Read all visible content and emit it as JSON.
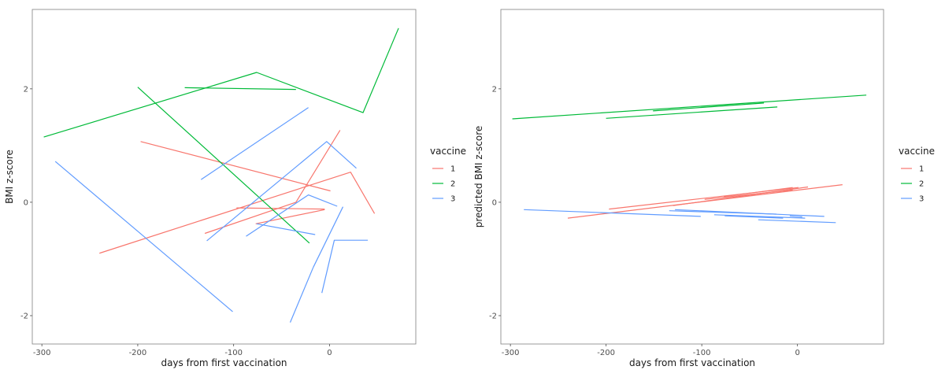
{
  "chart_data": [
    {
      "type": "line",
      "xlabel": "days from first vaccination",
      "ylabel": "BMI z-score",
      "xlim": [
        -310,
        90
      ],
      "ylim": [
        -2.5,
        3.4
      ],
      "x_ticks": [
        -300,
        -200,
        -100,
        0
      ],
      "x_tick_labels": [
        "-300",
        "-200",
        "-100",
        "0"
      ],
      "y_ticks": [
        -2,
        0,
        2
      ],
      "y_tick_labels": [
        "-2",
        "0",
        "2"
      ],
      "legend": {
        "title": "vaccine",
        "position": "right",
        "entries": [
          {
            "label": "1",
            "color": "#F8766D"
          },
          {
            "label": "2",
            "color": "#00BA38"
          },
          {
            "label": "3",
            "color": "#619CFF"
          }
        ]
      },
      "series": [
        {
          "vaccine": "1",
          "points": [
            [
              -240,
              -0.9
            ],
            [
              22,
              0.53
            ],
            [
              47,
              -0.2
            ]
          ]
        },
        {
          "vaccine": "1",
          "points": [
            [
              -197,
              1.07
            ],
            [
              1,
              0.2
            ]
          ]
        },
        {
          "vaccine": "1",
          "points": [
            [
              -130,
              -0.55
            ],
            [
              -35,
              0.0
            ],
            [
              11,
              1.27
            ]
          ]
        },
        {
          "vaccine": "1",
          "points": [
            [
              -97,
              -0.1
            ],
            [
              -5,
              -0.12
            ]
          ]
        },
        {
          "vaccine": "1",
          "points": [
            [
              -77,
              -0.38
            ],
            [
              -5,
              -0.13
            ]
          ]
        },
        {
          "vaccine": "2",
          "points": [
            [
              -298,
              1.15
            ],
            [
              -76,
              2.29
            ],
            [
              35,
              1.58
            ],
            [
              72,
              3.07
            ]
          ]
        },
        {
          "vaccine": "2",
          "points": [
            [
              -200,
              2.03
            ],
            [
              -21,
              -0.72
            ]
          ]
        },
        {
          "vaccine": "2",
          "points": [
            [
              -151,
              2.02
            ],
            [
              -35,
              1.99
            ]
          ]
        },
        {
          "vaccine": "3",
          "points": [
            [
              -286,
              0.72
            ],
            [
              -101,
              -1.93
            ]
          ]
        },
        {
          "vaccine": "3",
          "points": [
            [
              -134,
              0.4
            ],
            [
              -22,
              1.67
            ]
          ]
        },
        {
          "vaccine": "3",
          "points": [
            [
              -128,
              -0.68
            ],
            [
              -3,
              1.07
            ],
            [
              28,
              0.6
            ]
          ]
        },
        {
          "vaccine": "3",
          "points": [
            [
              -87,
              -0.6
            ],
            [
              -22,
              0.13
            ],
            [
              8,
              -0.07
            ]
          ]
        },
        {
          "vaccine": "3",
          "points": [
            [
              -76,
              -0.38
            ],
            [
              -15,
              -0.57
            ]
          ]
        },
        {
          "vaccine": "3",
          "points": [
            [
              -41,
              -2.12
            ],
            [
              -17,
              -1.15
            ]
          ]
        },
        {
          "vaccine": "3",
          "points": [
            [
              -8,
              -1.6
            ],
            [
              5,
              -0.67
            ],
            [
              40,
              -0.67
            ]
          ]
        },
        {
          "vaccine": "3",
          "points": [
            [
              -17,
              -1.15
            ],
            [
              14,
              -0.08
            ]
          ]
        }
      ]
    },
    {
      "type": "line",
      "xlabel": "days from first vaccination",
      "ylabel": "predicted BMI z-score",
      "xlim": [
        -310,
        90
      ],
      "ylim": [
        -2.5,
        3.4
      ],
      "x_ticks": [
        -300,
        -200,
        -100,
        0
      ],
      "x_tick_labels": [
        "-300",
        "-200",
        "-100",
        "0"
      ],
      "y_ticks": [
        -2,
        0,
        2
      ],
      "y_tick_labels": [
        "-2",
        "0",
        "2"
      ],
      "legend": {
        "title": "vaccine",
        "position": "right",
        "entries": [
          {
            "label": "1",
            "color": "#F8766D"
          },
          {
            "label": "2",
            "color": "#00BA38"
          },
          {
            "label": "3",
            "color": "#619CFF"
          }
        ]
      },
      "series": [
        {
          "vaccine": "1",
          "points": [
            [
              -240,
              -0.28
            ],
            [
              47,
              0.31
            ]
          ]
        },
        {
          "vaccine": "1",
          "points": [
            [
              -197,
              -0.12
            ],
            [
              1,
              0.26
            ]
          ]
        },
        {
          "vaccine": "1",
          "points": [
            [
              -130,
              -0.06
            ],
            [
              11,
              0.27
            ]
          ]
        },
        {
          "vaccine": "1",
          "points": [
            [
              -97,
              0.05
            ],
            [
              -5,
              0.22
            ]
          ]
        },
        {
          "vaccine": "1",
          "points": [
            [
              -77,
              0.1
            ],
            [
              -5,
              0.26
            ]
          ]
        },
        {
          "vaccine": "2",
          "points": [
            [
              -298,
              1.47
            ],
            [
              72,
              1.89
            ]
          ]
        },
        {
          "vaccine": "2",
          "points": [
            [
              -200,
              1.48
            ],
            [
              -21,
              1.68
            ]
          ]
        },
        {
          "vaccine": "2",
          "points": [
            [
              -151,
              1.61
            ],
            [
              -35,
              1.75
            ]
          ]
        },
        {
          "vaccine": "3",
          "points": [
            [
              -286,
              -0.13
            ],
            [
              -101,
              -0.25
            ]
          ]
        },
        {
          "vaccine": "3",
          "points": [
            [
              -134,
              -0.15
            ],
            [
              -22,
              -0.21
            ]
          ]
        },
        {
          "vaccine": "3",
          "points": [
            [
              -128,
              -0.13
            ],
            [
              28,
              -0.25
            ]
          ]
        },
        {
          "vaccine": "3",
          "points": [
            [
              -87,
              -0.22
            ],
            [
              8,
              -0.28
            ]
          ]
        },
        {
          "vaccine": "3",
          "points": [
            [
              -76,
              -0.24
            ],
            [
              -15,
              -0.28
            ]
          ]
        },
        {
          "vaccine": "3",
          "points": [
            [
              -41,
              -0.31
            ],
            [
              40,
              -0.36
            ]
          ]
        },
        {
          "vaccine": "3",
          "points": [
            [
              -8,
              -0.24
            ],
            [
              5,
              -0.26
            ]
          ]
        }
      ]
    }
  ]
}
